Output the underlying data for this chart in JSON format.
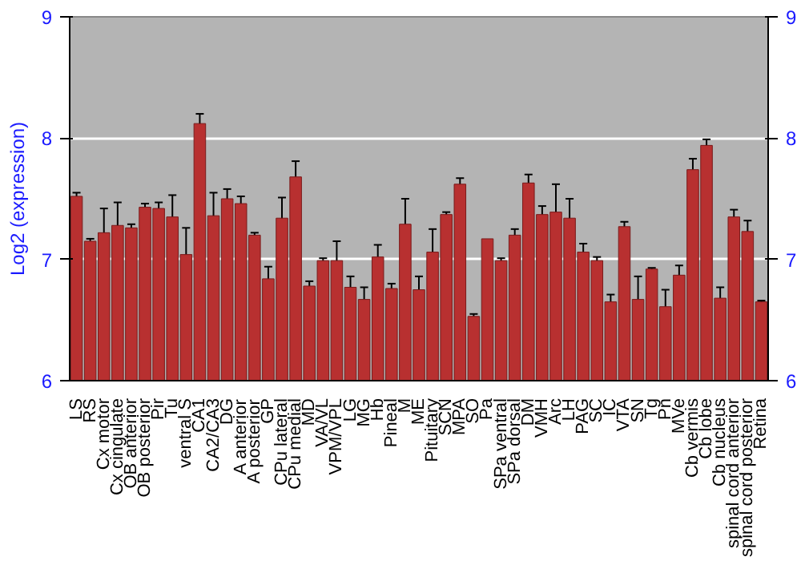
{
  "chart_data": {
    "type": "bar",
    "ylabel": "Log2 (expression)",
    "categories": [
      "LS",
      "RS",
      "Cx motor",
      "Cx cingulate",
      "OB anterior",
      "OB posterior",
      "Pir",
      "Tu",
      "ventral S",
      "CA1",
      "CA2/CA3",
      "DG",
      "A anterior",
      "A posterior",
      "GP",
      "CPu lateral",
      "CPu medial",
      "MD",
      "VA/VL",
      "VPM/VPL",
      "LG",
      "MG",
      "Hb",
      "Pineal",
      "M",
      "ME",
      "Pituitary",
      "SCN",
      "MPA",
      "SO",
      "Pa",
      "SPa ventral",
      "SPa dorsal",
      "DM",
      "VMH",
      "Arc",
      "LH",
      "PAG",
      "SC",
      "IC",
      "VTA",
      "SN",
      "Tg",
      "Pn",
      "MVe",
      "Cb vermis",
      "Cb lobe",
      "Cb nucleus",
      "spinal cord anterior",
      "spinal cord posterior",
      "Retina"
    ],
    "values": [
      7.52,
      7.15,
      7.22,
      7.28,
      7.26,
      7.43,
      7.42,
      7.35,
      7.04,
      8.12,
      7.36,
      7.5,
      7.46,
      7.2,
      6.84,
      7.34,
      7.68,
      6.78,
      6.99,
      6.99,
      6.77,
      6.67,
      7.02,
      6.76,
      7.29,
      6.75,
      7.06,
      7.37,
      7.62,
      6.53,
      7.17,
      6.99,
      7.2,
      7.63,
      7.37,
      7.39,
      7.34,
      7.06,
      6.99,
      6.65,
      7.27,
      6.67,
      6.92,
      6.61,
      6.87,
      7.74,
      7.94,
      6.68,
      7.35,
      7.23,
      6.65
    ],
    "errors": [
      0.03,
      0.02,
      0.2,
      0.19,
      0.03,
      0.03,
      0.05,
      0.18,
      0.22,
      0.08,
      0.19,
      0.08,
      0.06,
      0.02,
      0.1,
      0.17,
      0.13,
      0.04,
      0.02,
      0.16,
      0.09,
      0.1,
      0.1,
      0.04,
      0.21,
      0.11,
      0.19,
      0.02,
      0.05,
      0.02,
      null,
      0.02,
      0.05,
      0.07,
      0.07,
      0.23,
      0.16,
      0.07,
      0.03,
      0.06,
      0.04,
      0.19,
      0.01,
      0.14,
      0.08,
      0.09,
      0.05,
      0.09,
      0.06,
      0.09,
      0.01
    ],
    "color": "#b83030",
    "ylim": [
      6,
      9
    ],
    "yticks": [
      6,
      7,
      8,
      9
    ],
    "y2lim": [
      6,
      9
    ],
    "y2ticks": [
      6,
      7,
      8,
      9
    ],
    "grid": "y"
  }
}
